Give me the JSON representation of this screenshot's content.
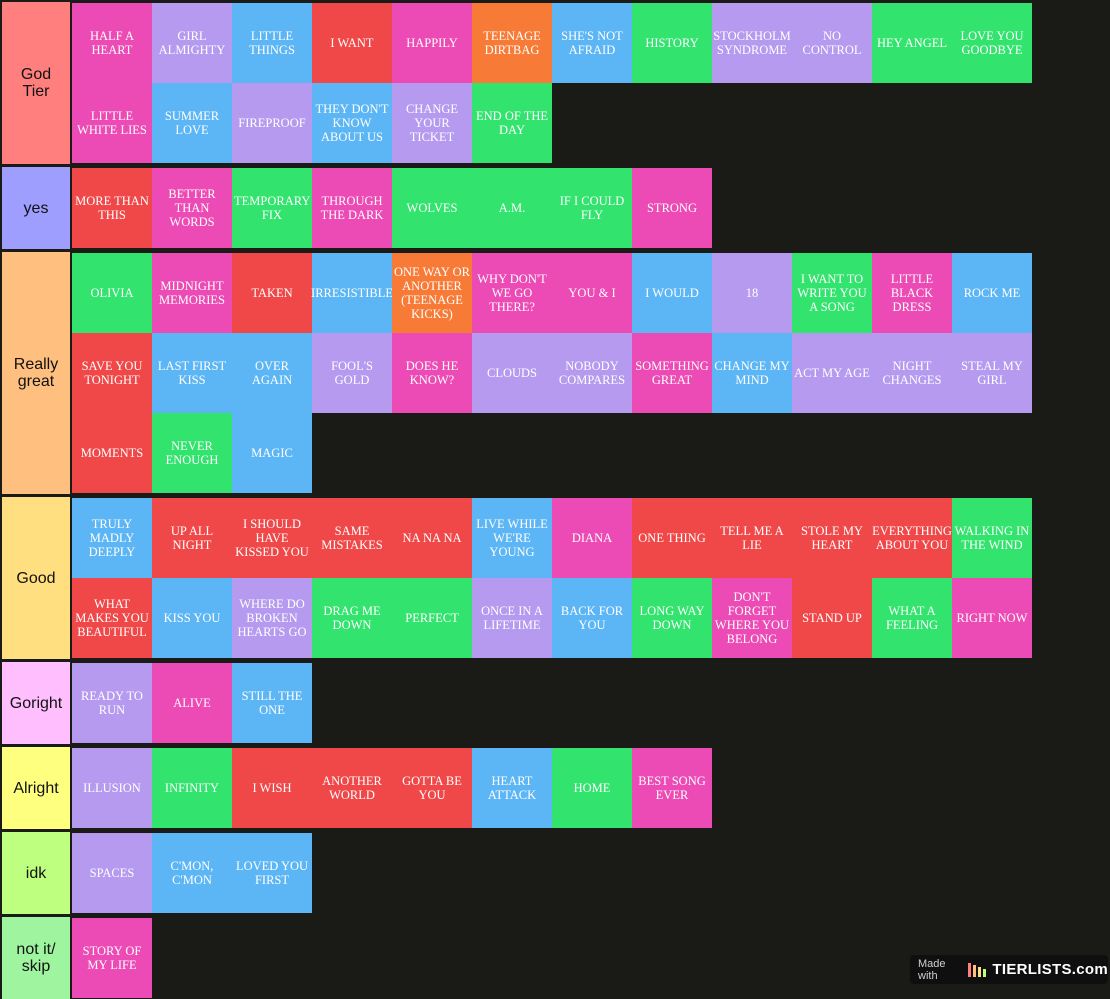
{
  "colors": {
    "background": "#1a1a17",
    "red": "#f04848",
    "pink": "#ec4ab4",
    "lavender": "#b59af0",
    "blue": "#5cb6f5",
    "green": "#32e36e",
    "orange": "#f77b36"
  },
  "tiers": [
    {
      "label": "God\nTier",
      "color": "#ff7f7f",
      "rows": 2,
      "items": [
        {
          "text": "HALF A HEART",
          "color": "pink"
        },
        {
          "text": "GIRL ALMIGHTY",
          "color": "lavender"
        },
        {
          "text": "LITTLE THINGS",
          "color": "blue"
        },
        {
          "text": "I WANT",
          "color": "red"
        },
        {
          "text": "HAPPILY",
          "color": "pink"
        },
        {
          "text": "TEENAGE DIRTBAG",
          "color": "orange"
        },
        {
          "text": "SHE'S NOT AFRAID",
          "color": "blue"
        },
        {
          "text": "HISTORY",
          "color": "green"
        },
        {
          "text": "STOCKHOLM SYNDROME",
          "color": "lavender"
        },
        {
          "text": "NO CONTROL",
          "color": "lavender"
        },
        {
          "text": "HEY ANGEL",
          "color": "green"
        },
        {
          "text": "LOVE YOU GOODBYE",
          "color": "green"
        },
        {
          "text": "LITTLE WHITE LIES",
          "color": "pink"
        },
        {
          "text": "SUMMER LOVE",
          "color": "blue"
        },
        {
          "text": "FIREPROOF",
          "color": "lavender"
        },
        {
          "text": "THEY DON'T KNOW ABOUT US",
          "color": "blue"
        },
        {
          "text": "CHANGE YOUR TICKET",
          "color": "lavender"
        },
        {
          "text": "END OF THE DAY",
          "color": "green"
        }
      ]
    },
    {
      "label": "yes",
      "color": "#9e9eff",
      "rows": 1,
      "items": [
        {
          "text": "MORE THAN THIS",
          "color": "red"
        },
        {
          "text": "BETTER THAN WORDS",
          "color": "pink"
        },
        {
          "text": "TEMPORARY FIX",
          "color": "green"
        },
        {
          "text": "THROUGH THE DARK",
          "color": "pink"
        },
        {
          "text": "WOLVES",
          "color": "green"
        },
        {
          "text": "A.M.",
          "color": "green"
        },
        {
          "text": "IF I COULD FLY",
          "color": "green"
        },
        {
          "text": "STRONG",
          "color": "pink"
        }
      ]
    },
    {
      "label": "Really\ngreat",
      "color": "#ffbf7f",
      "rows": 3,
      "items": [
        {
          "text": "OLIVIA",
          "color": "green"
        },
        {
          "text": "MIDNIGHT MEMORIES",
          "color": "pink"
        },
        {
          "text": "TAKEN",
          "color": "red"
        },
        {
          "text": "IRRESISTIBLE",
          "color": "blue"
        },
        {
          "text": "ONE WAY OR ANOTHER (TEENAGE KICKS)",
          "color": "orange"
        },
        {
          "text": "WHY DON'T WE GO THERE?",
          "color": "pink"
        },
        {
          "text": "YOU & I",
          "color": "pink"
        },
        {
          "text": "I WOULD",
          "color": "blue"
        },
        {
          "text": "18",
          "color": "lavender"
        },
        {
          "text": "I WANT TO WRITE YOU A SONG",
          "color": "green"
        },
        {
          "text": "LITTLE BLACK DRESS",
          "color": "pink"
        },
        {
          "text": "ROCK ME",
          "color": "blue"
        },
        {
          "text": "SAVE YOU TONIGHT",
          "color": "red"
        },
        {
          "text": "LAST FIRST KISS",
          "color": "blue"
        },
        {
          "text": "OVER AGAIN",
          "color": "blue"
        },
        {
          "text": "FOOL'S GOLD",
          "color": "lavender"
        },
        {
          "text": "DOES HE KNOW?",
          "color": "pink"
        },
        {
          "text": "CLOUDS",
          "color": "lavender"
        },
        {
          "text": "NOBODY COMPARES",
          "color": "lavender"
        },
        {
          "text": "SOMETHING GREAT",
          "color": "pink"
        },
        {
          "text": "CHANGE MY MIND",
          "color": "blue"
        },
        {
          "text": "ACT MY AGE",
          "color": "lavender"
        },
        {
          "text": "NIGHT CHANGES",
          "color": "lavender"
        },
        {
          "text": "STEAL MY GIRL",
          "color": "lavender"
        },
        {
          "text": "MOMENTS",
          "color": "red"
        },
        {
          "text": "NEVER ENOUGH",
          "color": "green"
        },
        {
          "text": "MAGIC",
          "color": "blue"
        }
      ]
    },
    {
      "label": "Good",
      "color": "#ffdf7f",
      "rows": 2,
      "items": [
        {
          "text": "TRULY MADLY DEEPLY",
          "color": "blue"
        },
        {
          "text": "UP ALL NIGHT",
          "color": "red"
        },
        {
          "text": "I SHOULD HAVE KISSED YOU",
          "color": "red"
        },
        {
          "text": "SAME MISTAKES",
          "color": "red"
        },
        {
          "text": "NA NA NA",
          "color": "red"
        },
        {
          "text": "LIVE WHILE WE'RE YOUNG",
          "color": "blue"
        },
        {
          "text": "DIANA",
          "color": "pink"
        },
        {
          "text": "ONE THING",
          "color": "red"
        },
        {
          "text": "TELL ME A LIE",
          "color": "red"
        },
        {
          "text": "STOLE MY HEART",
          "color": "red"
        },
        {
          "text": "EVERYTHING ABOUT YOU",
          "color": "red"
        },
        {
          "text": "WALKING IN THE WIND",
          "color": "green"
        },
        {
          "text": "WHAT MAKES YOU BEAUTIFUL",
          "color": "red"
        },
        {
          "text": "KISS YOU",
          "color": "blue"
        },
        {
          "text": "WHERE DO BROKEN HEARTS GO",
          "color": "lavender"
        },
        {
          "text": "DRAG ME DOWN",
          "color": "green"
        },
        {
          "text": "PERFECT",
          "color": "green"
        },
        {
          "text": "ONCE IN A LIFETIME",
          "color": "lavender"
        },
        {
          "text": "BACK FOR YOU",
          "color": "blue"
        },
        {
          "text": "LONG WAY DOWN",
          "color": "green"
        },
        {
          "text": "DON'T FORGET WHERE YOU BELONG",
          "color": "pink"
        },
        {
          "text": "STAND UP",
          "color": "red"
        },
        {
          "text": "WHAT A FEELING",
          "color": "green"
        },
        {
          "text": "RIGHT NOW",
          "color": "pink"
        }
      ]
    },
    {
      "label": "Goright",
      "color": "#ffbfff",
      "rows": 1,
      "items": [
        {
          "text": "READY TO RUN",
          "color": "lavender"
        },
        {
          "text": "ALIVE",
          "color": "pink"
        },
        {
          "text": "STILL THE ONE",
          "color": "blue"
        }
      ]
    },
    {
      "label": "Alright",
      "color": "#ffff7f",
      "rows": 1,
      "items": [
        {
          "text": "ILLUSION",
          "color": "lavender"
        },
        {
          "text": "INFINITY",
          "color": "green"
        },
        {
          "text": "I WISH",
          "color": "red"
        },
        {
          "text": "ANOTHER WORLD",
          "color": "red"
        },
        {
          "text": "GOTTA BE YOU",
          "color": "red"
        },
        {
          "text": "HEART ATTACK",
          "color": "blue"
        },
        {
          "text": "HOME",
          "color": "green"
        },
        {
          "text": "BEST SONG EVER",
          "color": "pink"
        }
      ]
    },
    {
      "label": "idk",
      "color": "#bfff7f",
      "rows": 1,
      "items": [
        {
          "text": "SPACES",
          "color": "lavender"
        },
        {
          "text": "C'MON, C'MON",
          "color": "blue"
        },
        {
          "text": "LOVED YOU FIRST",
          "color": "blue"
        }
      ]
    },
    {
      "label": "not it/\nskip",
      "color": "#9ff59f",
      "rows": 1,
      "items": [
        {
          "text": "STORY OF MY LIFE",
          "color": "pink"
        }
      ]
    }
  ],
  "watermark": {
    "made_with": "Made with",
    "logo": "TIERLISTS.com",
    "bar_colors": [
      "#ff7f7f",
      "#ffbf7f",
      "#ffdf7f",
      "#bfff7f"
    ]
  }
}
